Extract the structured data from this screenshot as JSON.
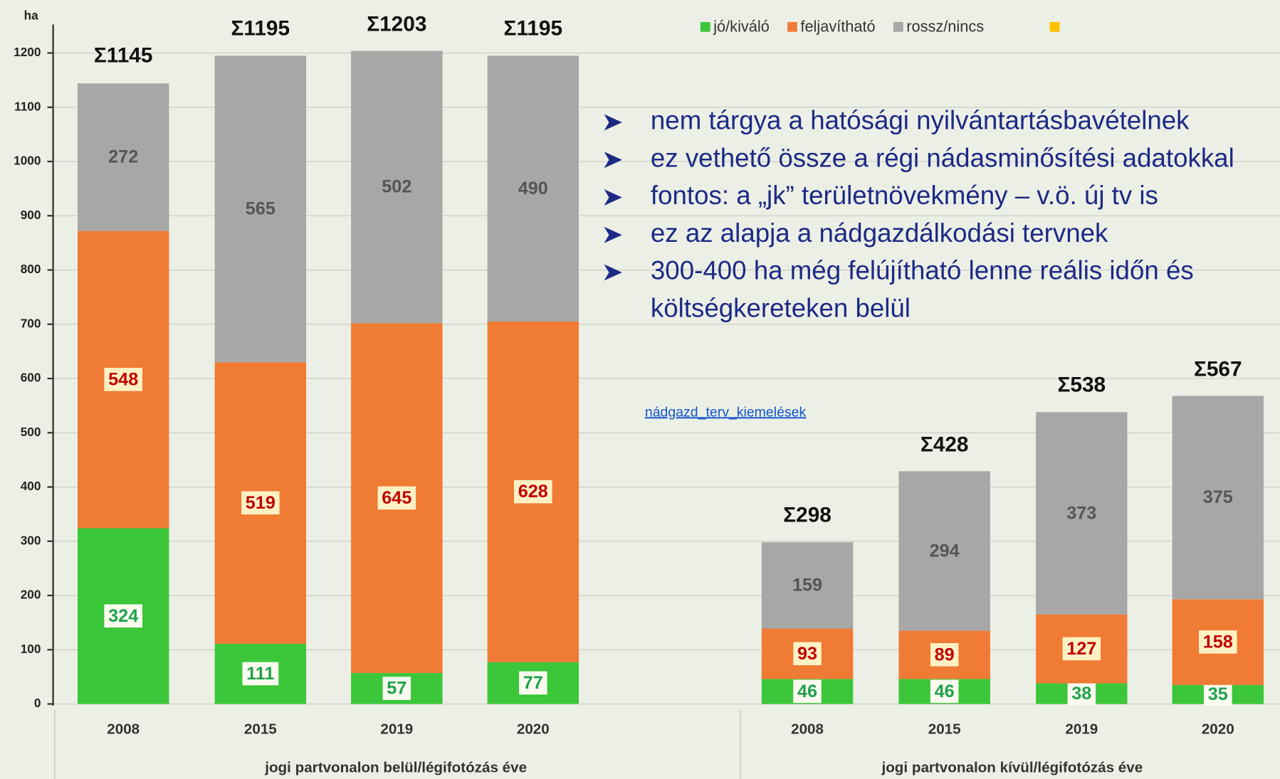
{
  "chart_data": [
    {
      "type": "stacked_bar",
      "y_label": "ha",
      "x_label": "jogi partvonalon belül/légifotózás éve",
      "categories": [
        "2008",
        "2015",
        "2019",
        "2020"
      ],
      "series": [
        {
          "name": "jó/kiváló",
          "color": "#3cc63a",
          "values": [
            324,
            111,
            57,
            77
          ]
        },
        {
          "name": "feljavítható",
          "color": "#ef7b34",
          "values": [
            548,
            519,
            645,
            628
          ]
        },
        {
          "name": "rossz/nincs",
          "color": "#a7a7a7",
          "values": [
            272,
            565,
            502,
            490
          ]
        }
      ],
      "totals": [
        1145,
        1195,
        1203,
        1195
      ],
      "total_labels": [
        "Σ1145",
        "Σ1195",
        "Σ1203",
        "Σ1195"
      ],
      "ylim": [
        0,
        1200
      ],
      "yticks": [
        0,
        100,
        200,
        300,
        400,
        500,
        600,
        700,
        800,
        900,
        1000,
        1100,
        1200
      ],
      "grid": true
    },
    {
      "type": "stacked_bar",
      "x_label": "jogi partvonalon kívül/légifotózás éve",
      "categories": [
        "2008",
        "2015",
        "2019",
        "2020"
      ],
      "series": [
        {
          "name": "jó/kiváló",
          "color": "#3cc63a",
          "values": [
            46,
            46,
            38,
            35
          ]
        },
        {
          "name": "feljavítható",
          "color": "#ef7b34",
          "values": [
            93,
            89,
            127,
            158
          ]
        },
        {
          "name": "rossz/nincs",
          "color": "#a7a7a7",
          "values": [
            159,
            294,
            373,
            375
          ]
        }
      ],
      "totals": [
        298,
        428,
        538,
        567
      ],
      "total_labels": [
        "Σ298",
        "Σ428",
        "Σ538",
        "Σ567"
      ],
      "ylim": [
        0,
        1200
      ]
    }
  ],
  "bullets": [
    [
      "nem tárgya a hatósági nyilvántartásbavételnek"
    ],
    [
      "ez vethető össze a régi nádasminősítési adatokkal"
    ],
    [
      "fontos: a „jk” területnövekmény – v.ö. új tv is"
    ],
    [
      "ez az alapja a nádgazdálkodási tervnek"
    ],
    [
      "300-400 ha még felújítható lenne reális időn és",
      "költségkereteken belül"
    ]
  ],
  "link": "nádgazd_terv_kiemelések"
}
